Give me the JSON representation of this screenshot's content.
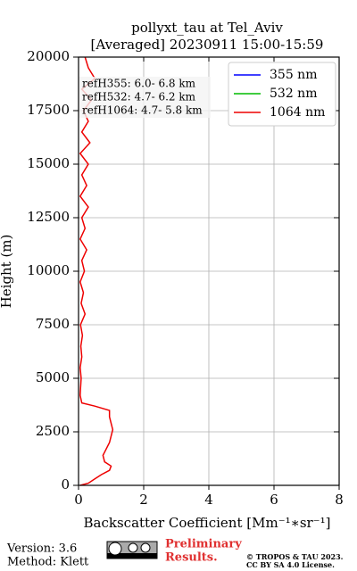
{
  "chart_data": {
    "type": "line",
    "title": "pollyxt_tau at Tel_Aviv",
    "subtitle": "[Averaged] 20230911 15:00-15:59",
    "xlabel": "Backscatter Coefficient [Mm⁻¹∗sr⁻¹]",
    "ylabel": "Height (m)",
    "xlim": [
      0,
      8
    ],
    "xticks": [
      0,
      2,
      4,
      6,
      8
    ],
    "ylim": [
      0,
      20000
    ],
    "yticks": [
      0,
      2500,
      5000,
      7500,
      10000,
      12500,
      15000,
      17500,
      20000
    ],
    "grid": true,
    "legend": "upper right",
    "annotations": [
      "refH355:  6.0- 6.8 km",
      "refH532:  4.7- 6.2 km",
      "refH1064:  4.7- 5.8 km"
    ],
    "y": [
      0,
      100,
      300,
      500,
      700,
      900,
      1100,
      1400,
      1700,
      2000,
      2300,
      2600,
      2900,
      3200,
      3500,
      3700,
      3850,
      4200,
      4500,
      5000,
      5500,
      6000,
      6500,
      7000,
      7500,
      8000,
      8500,
      9000,
      9500,
      10000,
      10500,
      11000,
      11500,
      12000,
      12500,
      13000,
      13500,
      14000,
      14500,
      15000,
      15500,
      16000,
      16500,
      17000,
      17500,
      18000,
      18500,
      19000,
      19500,
      20000
    ],
    "series": [
      {
        "name": "355 nm",
        "color": "#0000ff",
        "values": [
          null,
          null,
          null,
          null,
          null,
          null,
          null,
          null,
          null,
          null,
          null,
          null,
          null,
          null,
          null,
          null,
          null,
          null,
          null,
          null,
          null,
          null,
          null,
          null,
          null,
          null,
          null,
          null,
          null,
          null,
          null,
          null,
          null,
          null,
          null,
          null,
          null,
          null,
          null,
          null,
          null,
          null,
          null,
          null,
          null,
          null,
          null,
          null,
          null,
          null
        ]
      },
      {
        "name": "532 nm",
        "color": "#00bb00",
        "values": [
          null,
          null,
          null,
          null,
          null,
          null,
          null,
          null,
          null,
          null,
          null,
          null,
          null,
          null,
          null,
          null,
          null,
          null,
          null,
          null,
          null,
          null,
          null,
          null,
          null,
          null,
          null,
          null,
          null,
          null,
          null,
          null,
          null,
          null,
          null,
          null,
          null,
          null,
          null,
          null,
          null,
          null,
          null,
          null,
          null,
          null,
          null,
          null,
          null,
          null
        ]
      },
      {
        "name": "1064 nm",
        "color": "#ee0000",
        "values": [
          0.05,
          0.3,
          0.5,
          0.7,
          0.95,
          1.0,
          0.8,
          0.75,
          0.85,
          0.95,
          1.0,
          1.05,
          1.0,
          0.95,
          0.95,
          0.5,
          0.1,
          0.05,
          0.06,
          0.08,
          0.05,
          0.1,
          0.07,
          0.12,
          0.06,
          0.2,
          0.08,
          0.15,
          0.05,
          0.18,
          0.1,
          0.25,
          0.05,
          0.2,
          0.1,
          0.3,
          0.05,
          0.25,
          0.1,
          0.3,
          0.05,
          0.35,
          0.1,
          0.3,
          0.15,
          0.4,
          0.1,
          0.5,
          0.3,
          0.2
        ]
      }
    ]
  },
  "footer": {
    "version": "Version: 3.6",
    "method": "Method: Klett",
    "notice": [
      "Preliminary",
      "Results."
    ],
    "copyright": [
      "© TROPOS & TAU 2023.",
      "CC BY SA 4.0 License."
    ]
  }
}
